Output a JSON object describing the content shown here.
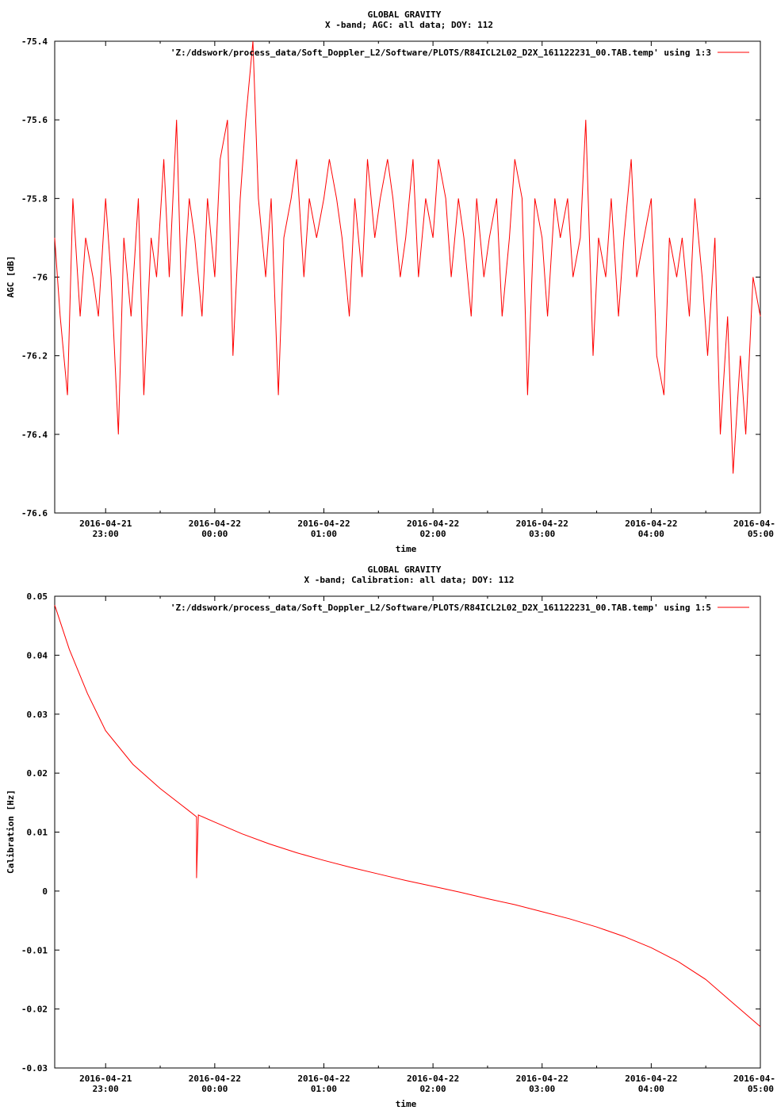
{
  "chart_data": [
    {
      "type": "line",
      "title": "GLOBAL GRAVITY",
      "subtitle": "X -band; AGC: all data; DOY: 112",
      "xlabel": "time",
      "ylabel": "AGC [dB]",
      "xlim": [
        "2016-04-21 22:32",
        "2016-04-22 05:00"
      ],
      "ylim": [
        -76.6,
        -75.4
      ],
      "grid": false,
      "legend_position": "top-right",
      "x_ticks": [
        {
          "date": "2016-04-21",
          "time": "23:00"
        },
        {
          "date": "2016-04-22",
          "time": "00:00"
        },
        {
          "date": "2016-04-22",
          "time": "01:00"
        },
        {
          "date": "2016-04-22",
          "time": "02:00"
        },
        {
          "date": "2016-04-22",
          "time": "03:00"
        },
        {
          "date": "2016-04-22",
          "time": "04:00"
        },
        {
          "date": "2016-04-",
          "time": "05:00"
        }
      ],
      "y_ticks": [
        "-75.4",
        "-75.6",
        "-75.8",
        "-76",
        "-76.2",
        "-76.4",
        "-76.6"
      ],
      "series": [
        {
          "name": "'Z:/ddswork/process_data/Soft_Doppler_L2/Software/PLOTS/R84ICL2L02_D2X_161122231_00.TAB.temp' using 1:3",
          "color": "#ff0000",
          "x": [
            "22:32",
            "22:35",
            "22:39",
            "22:42",
            "22:46",
            "22:49",
            "22:53",
            "22:56",
            "23:00",
            "23:03",
            "23:07",
            "23:10",
            "23:14",
            "23:18",
            "23:21",
            "23:25",
            "23:28",
            "23:32",
            "23:35",
            "23:39",
            "23:42",
            "23:46",
            "23:49",
            "23:53",
            "23:56",
            "00:00",
            "00:03",
            "00:07",
            "00:10",
            "00:14",
            "00:17",
            "00:21",
            "00:24",
            "00:28",
            "00:31",
            "00:35",
            "00:38",
            "00:42",
            "00:45",
            "00:49",
            "00:52",
            "00:56",
            "01:00",
            "01:03",
            "01:07",
            "01:10",
            "01:14",
            "01:17",
            "01:21",
            "01:24",
            "01:28",
            "01:31",
            "01:35",
            "01:38",
            "01:42",
            "01:45",
            "01:49",
            "01:52",
            "01:56",
            "02:00",
            "02:03",
            "02:07",
            "02:10",
            "02:14",
            "02:17",
            "02:21",
            "02:24",
            "02:28",
            "02:31",
            "02:35",
            "02:38",
            "02:42",
            "02:45",
            "02:49",
            "02:52",
            "02:56",
            "03:00",
            "03:03",
            "03:07",
            "03:10",
            "03:14",
            "03:17",
            "03:21",
            "03:24",
            "03:28",
            "03:31",
            "03:35",
            "03:38",
            "03:42",
            "03:45",
            "03:49",
            "03:52",
            "03:56",
            "04:00",
            "04:03",
            "04:07",
            "04:10",
            "04:14",
            "04:17",
            "04:21",
            "04:24",
            "04:28",
            "04:31",
            "04:35",
            "04:38",
            "04:42",
            "04:45",
            "04:49",
            "04:52",
            "04:56",
            "05:00"
          ],
          "y": [
            -75.9,
            -76.1,
            -76.3,
            -75.8,
            -76.1,
            -75.9,
            -76.0,
            -76.1,
            -75.8,
            -76.0,
            -76.4,
            -75.9,
            -76.1,
            -75.8,
            -76.3,
            -75.9,
            -76.0,
            -75.7,
            -76.0,
            -75.6,
            -76.1,
            -75.8,
            -75.9,
            -76.1,
            -75.8,
            -76.0,
            -75.7,
            -75.6,
            -76.2,
            -75.8,
            -75.6,
            -75.4,
            -75.8,
            -76.0,
            -75.8,
            -76.3,
            -75.9,
            -75.8,
            -75.7,
            -76.0,
            -75.8,
            -75.9,
            -75.8,
            -75.7,
            -75.8,
            -75.9,
            -76.1,
            -75.8,
            -76.0,
            -75.7,
            -75.9,
            -75.8,
            -75.7,
            -75.8,
            -76.0,
            -75.9,
            -75.7,
            -76.0,
            -75.8,
            -75.9,
            -75.7,
            -75.8,
            -76.0,
            -75.8,
            -75.9,
            -76.1,
            -75.8,
            -76.0,
            -75.9,
            -75.8,
            -76.1,
            -75.9,
            -75.7,
            -75.8,
            -76.3,
            -75.8,
            -75.9,
            -76.1,
            -75.8,
            -75.9,
            -75.8,
            -76.0,
            -75.9,
            -75.6,
            -76.2,
            -75.9,
            -76.0,
            -75.8,
            -76.1,
            -75.9,
            -75.7,
            -76.0,
            -75.9,
            -75.8,
            -76.2,
            -76.3,
            -75.9,
            -76.0,
            -75.9,
            -76.1,
            -75.8,
            -76.0,
            -76.2,
            -75.9,
            -76.4,
            -76.1,
            -76.5,
            -76.2,
            -76.4,
            -76.0,
            -76.1
          ]
        }
      ]
    },
    {
      "type": "line",
      "title": "GLOBAL GRAVITY",
      "subtitle": "X -band; Calibration: all data; DOY: 112",
      "xlabel": "time",
      "ylabel": "Calibration [Hz]",
      "xlim": [
        "2016-04-21 22:32",
        "2016-04-22 05:00"
      ],
      "ylim": [
        -0.03,
        0.05
      ],
      "grid": false,
      "legend_position": "top-right",
      "x_ticks": [
        {
          "date": "2016-04-21",
          "time": "23:00"
        },
        {
          "date": "2016-04-22",
          "time": "00:00"
        },
        {
          "date": "2016-04-22",
          "time": "01:00"
        },
        {
          "date": "2016-04-22",
          "time": "02:00"
        },
        {
          "date": "2016-04-22",
          "time": "03:00"
        },
        {
          "date": "2016-04-22",
          "time": "04:00"
        },
        {
          "date": "2016-04-",
          "time": "05:00"
        }
      ],
      "y_ticks": [
        "0.05",
        "0.04",
        "0.03",
        "0.02",
        "0.01",
        "0",
        "-0.01",
        "-0.02",
        "-0.03"
      ],
      "series": [
        {
          "name": "'Z:/ddswork/process_data/Soft_Doppler_L2/Software/PLOTS/R84ICL2L02_D2X_161122231_00.TAB.temp' using 1:5",
          "color": "#ff0000",
          "x": [
            "22:32",
            "22:40",
            "22:50",
            "23:00",
            "23:15",
            "23:30",
            "23:45",
            "23:50",
            "23:50",
            "23:51",
            "00:00",
            "00:15",
            "00:30",
            "00:45",
            "01:00",
            "01:15",
            "01:30",
            "01:45",
            "02:00",
            "02:15",
            "02:30",
            "02:45",
            "03:00",
            "03:15",
            "03:30",
            "03:45",
            "04:00",
            "04:15",
            "04:30",
            "04:45",
            "05:00"
          ],
          "y": [
            0.0485,
            0.041,
            0.0335,
            0.0272,
            0.0215,
            0.0174,
            0.0138,
            0.0126,
            0.0022,
            0.0129,
            0.0117,
            0.0097,
            0.008,
            0.0065,
            0.0052,
            0.004,
            0.0029,
            0.0018,
            0.0008,
            -0.0002,
            -0.0013,
            -0.0023,
            -0.0035,
            -0.0047,
            -0.0061,
            -0.0077,
            -0.0096,
            -0.012,
            -0.015,
            -0.019,
            -0.023
          ]
        }
      ]
    }
  ]
}
